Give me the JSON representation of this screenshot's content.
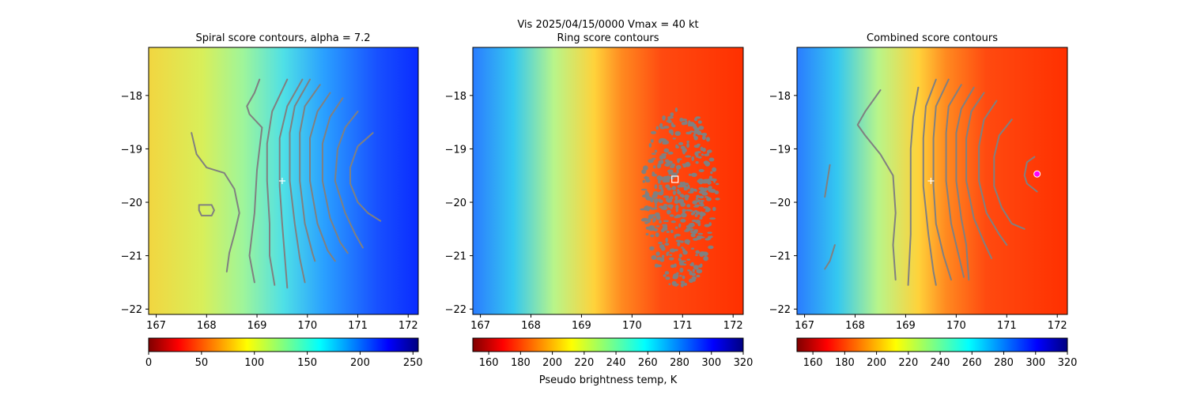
{
  "figure": {
    "suptitle": "Vis  2025/04/15/0000    Vmax = 40 kt",
    "colorbar_label": "Pseudo brightness temp, K"
  },
  "chart_data": [
    {
      "type": "heatmap",
      "title": "Spiral score contours, alpha =  7.2",
      "xlim": [
        166.85,
        172.2
      ],
      "ylim": [
        -22.1,
        -17.1
      ],
      "x_ticks": [
        167,
        168,
        169,
        170,
        171,
        172
      ],
      "y_ticks": [
        -18,
        -19,
        -20,
        -21,
        -22
      ],
      "x_tick_labels": [
        "167",
        "168",
        "169",
        "170",
        "171",
        "172"
      ],
      "y_tick_labels": [
        "−18",
        "−19",
        "−20",
        "−21",
        "−22"
      ],
      "colormap": "jet_r",
      "background": {
        "cold_low_x": 166.85,
        "warm_high_x": 172.2,
        "value_west": 90,
        "value_east": 230
      },
      "colorbar": {
        "range": [
          0,
          255
        ],
        "ticks": [
          0,
          50,
          100,
          150,
          200,
          250
        ],
        "tick_labels": [
          "0",
          "50",
          "100",
          "150",
          "200",
          "250"
        ]
      },
      "center_marker": {
        "x": 169.5,
        "y": -19.6,
        "symbol": "plus"
      },
      "contours": [
        {
          "name": "inner-spiral",
          "points": [
            [
              167.7,
              -18.7
            ],
            [
              167.8,
              -19.1
            ],
            [
              168.0,
              -19.35
            ],
            [
              168.35,
              -19.45
            ],
            [
              168.55,
              -19.75
            ],
            [
              168.65,
              -20.2
            ],
            [
              168.55,
              -20.6
            ],
            [
              168.45,
              -20.95
            ],
            [
              168.4,
              -21.3
            ]
          ]
        },
        {
          "name": "closed-loop",
          "closed": true,
          "points": [
            [
              167.85,
              -20.05
            ],
            [
              168.1,
              -20.05
            ],
            [
              168.15,
              -20.15
            ],
            [
              168.1,
              -20.25
            ],
            [
              167.9,
              -20.25
            ],
            [
              167.85,
              -20.15
            ]
          ]
        },
        {
          "name": "spiral-arc-1",
          "points": [
            [
              169.05,
              -17.7
            ],
            [
              168.95,
              -17.95
            ],
            [
              168.8,
              -18.2
            ],
            [
              168.85,
              -18.35
            ],
            [
              169.1,
              -18.6
            ],
            [
              169.0,
              -19.4
            ],
            [
              168.95,
              -20.2
            ],
            [
              168.85,
              -21.0
            ],
            [
              168.95,
              -21.5
            ]
          ]
        },
        {
          "name": "spiral-arc-2",
          "points": [
            [
              169.6,
              -17.7
            ],
            [
              169.3,
              -18.3
            ],
            [
              169.2,
              -18.9
            ],
            [
              169.2,
              -19.6
            ],
            [
              169.25,
              -20.4
            ],
            [
              169.25,
              -21.0
            ],
            [
              169.35,
              -21.55
            ]
          ]
        },
        {
          "name": "spiral-arc-3",
          "points": [
            [
              169.9,
              -17.7
            ],
            [
              169.6,
              -18.2
            ],
            [
              169.45,
              -18.8
            ],
            [
              169.45,
              -19.7
            ],
            [
              169.5,
              -20.4
            ],
            [
              169.55,
              -21.0
            ],
            [
              169.6,
              -21.6
            ]
          ]
        },
        {
          "name": "spiral-arc-4",
          "points": [
            [
              170.05,
              -17.7
            ],
            [
              169.75,
              -18.2
            ],
            [
              169.65,
              -18.7
            ],
            [
              169.65,
              -19.6
            ],
            [
              169.75,
              -20.4
            ],
            [
              169.85,
              -21.05
            ],
            [
              169.95,
              -21.5
            ]
          ]
        },
        {
          "name": "spiral-arc-5",
          "points": [
            [
              170.25,
              -17.8
            ],
            [
              169.95,
              -18.2
            ],
            [
              169.85,
              -18.7
            ],
            [
              169.85,
              -19.6
            ],
            [
              169.95,
              -20.4
            ],
            [
              170.1,
              -20.95
            ],
            [
              170.15,
              -21.1
            ]
          ]
        },
        {
          "name": "spiral-arc-6",
          "points": [
            [
              170.45,
              -17.95
            ],
            [
              170.2,
              -18.3
            ],
            [
              170.05,
              -18.8
            ],
            [
              170.05,
              -19.6
            ],
            [
              170.2,
              -20.4
            ],
            [
              170.4,
              -20.9
            ],
            [
              170.55,
              -21.1
            ]
          ]
        },
        {
          "name": "spiral-arc-7",
          "points": [
            [
              170.7,
              -18.05
            ],
            [
              170.45,
              -18.4
            ],
            [
              170.3,
              -18.9
            ],
            [
              170.3,
              -19.6
            ],
            [
              170.45,
              -20.3
            ],
            [
              170.65,
              -20.75
            ],
            [
              170.8,
              -20.95
            ]
          ]
        },
        {
          "name": "spiral-arc-8",
          "points": [
            [
              171.0,
              -18.3
            ],
            [
              170.75,
              -18.6
            ],
            [
              170.6,
              -19.0
            ],
            [
              170.55,
              -19.6
            ],
            [
              170.75,
              -20.2
            ],
            [
              170.95,
              -20.6
            ],
            [
              171.1,
              -20.85
            ]
          ]
        },
        {
          "name": "spiral-arc-9",
          "points": [
            [
              171.3,
              -18.7
            ],
            [
              171.0,
              -18.95
            ],
            [
              170.85,
              -19.35
            ],
            [
              170.85,
              -19.65
            ],
            [
              171.0,
              -20.0
            ],
            [
              171.2,
              -20.2
            ],
            [
              171.45,
              -20.35
            ]
          ]
        }
      ]
    },
    {
      "type": "heatmap",
      "title": "Ring score contours",
      "xlim": [
        166.85,
        172.2
      ],
      "ylim": [
        -22.1,
        -17.1
      ],
      "x_ticks": [
        167,
        168,
        169,
        170,
        171,
        172
      ],
      "y_ticks": [
        -18,
        -19,
        -20,
        -21,
        -22
      ],
      "x_tick_labels": [
        "167",
        "168",
        "169",
        "170",
        "171",
        "172"
      ],
      "y_tick_labels": [
        "−18",
        "−19",
        "−20",
        "−21",
        "−22"
      ],
      "colormap": "jet_r",
      "background": {
        "cold_low_x": 166.85,
        "warm_high_x": 172.2,
        "value_west": 285,
        "value_east": 170
      },
      "colorbar": {
        "range": [
          150,
          320
        ],
        "ticks": [
          160,
          180,
          200,
          220,
          240,
          260,
          280,
          300,
          320
        ],
        "tick_labels": [
          "160",
          "180",
          "200",
          "220",
          "240",
          "260",
          "280",
          "300",
          "320"
        ]
      },
      "center_marker": {
        "x": 170.85,
        "y": -19.57,
        "symbol": "square"
      },
      "ring_region": {
        "center": [
          170.95,
          -19.9
        ],
        "x_radius": 0.75,
        "y_radius": 1.7,
        "fill": "#808080"
      }
    },
    {
      "type": "heatmap",
      "title": "Combined score contours",
      "xlim": [
        166.85,
        172.2
      ],
      "ylim": [
        -22.1,
        -17.1
      ],
      "x_ticks": [
        167,
        168,
        169,
        170,
        171,
        172
      ],
      "y_ticks": [
        -18,
        -19,
        -20,
        -21,
        -22
      ],
      "x_tick_labels": [
        "167",
        "168",
        "169",
        "170",
        "171",
        "172"
      ],
      "y_tick_labels": [
        "−18",
        "−19",
        "−20",
        "−21",
        "−22"
      ],
      "colormap": "jet_r",
      "background": {
        "cold_low_x": 166.85,
        "warm_high_x": 172.2,
        "value_west": 285,
        "value_east": 170
      },
      "colorbar": {
        "range": [
          150,
          320
        ],
        "ticks": [
          160,
          180,
          200,
          220,
          240,
          260,
          280,
          300,
          320
        ],
        "tick_labels": [
          "160",
          "180",
          "200",
          "220",
          "240",
          "260",
          "280",
          "300",
          "320"
        ]
      },
      "center_marker": {
        "x": 169.5,
        "y": -19.6,
        "symbol": "plus"
      },
      "best_marker": {
        "x": 171.6,
        "y": -19.47,
        "symbol": "circle",
        "color": "#ff00ff"
      },
      "contours": [
        {
          "name": "west-fragment-1",
          "points": [
            [
              167.5,
              -19.3
            ],
            [
              167.45,
              -19.6
            ],
            [
              167.4,
              -19.9
            ]
          ]
        },
        {
          "name": "west-fragment-2",
          "points": [
            [
              167.6,
              -20.8
            ],
            [
              167.5,
              -21.1
            ],
            [
              167.4,
              -21.25
            ]
          ]
        },
        {
          "name": "spiral-arc-1",
          "points": [
            [
              168.5,
              -17.9
            ],
            [
              168.2,
              -18.3
            ],
            [
              168.05,
              -18.55
            ],
            [
              168.2,
              -18.75
            ],
            [
              168.5,
              -19.1
            ],
            [
              168.75,
              -19.5
            ],
            [
              168.8,
              -20.2
            ],
            [
              168.75,
              -20.8
            ],
            [
              168.8,
              -21.45
            ]
          ]
        },
        {
          "name": "spiral-arc-2",
          "points": [
            [
              169.25,
              -17.85
            ],
            [
              169.15,
              -18.4
            ],
            [
              169.1,
              -19.0
            ],
            [
              169.1,
              -19.8
            ],
            [
              169.1,
              -20.6
            ],
            [
              169.05,
              -21.55
            ]
          ]
        },
        {
          "name": "spiral-arc-3",
          "points": [
            [
              169.6,
              -17.7
            ],
            [
              169.4,
              -18.2
            ],
            [
              169.35,
              -18.8
            ],
            [
              169.35,
              -19.7
            ],
            [
              169.45,
              -20.6
            ],
            [
              169.55,
              -21.3
            ],
            [
              169.6,
              -21.55
            ]
          ]
        },
        {
          "name": "spiral-arc-4",
          "points": [
            [
              169.85,
              -17.7
            ],
            [
              169.6,
              -18.2
            ],
            [
              169.55,
              -18.8
            ],
            [
              169.55,
              -19.7
            ],
            [
              169.6,
              -20.4
            ],
            [
              169.75,
              -21.0
            ],
            [
              169.9,
              -21.45
            ]
          ]
        },
        {
          "name": "spiral-arc-5",
          "points": [
            [
              170.1,
              -17.8
            ],
            [
              169.85,
              -18.2
            ],
            [
              169.8,
              -18.7
            ],
            [
              169.8,
              -19.6
            ],
            [
              169.9,
              -20.4
            ],
            [
              170.05,
              -21.0
            ],
            [
              170.15,
              -21.4
            ]
          ]
        },
        {
          "name": "spiral-arc-6",
          "points": [
            [
              170.35,
              -17.85
            ],
            [
              170.1,
              -18.25
            ],
            [
              170.0,
              -18.7
            ],
            [
              170.0,
              -19.6
            ],
            [
              170.1,
              -20.3
            ],
            [
              170.2,
              -20.8
            ],
            [
              170.25,
              -21.45
            ]
          ]
        },
        {
          "name": "spiral-arc-7",
          "points": [
            [
              170.55,
              -17.95
            ],
            [
              170.3,
              -18.3
            ],
            [
              170.2,
              -18.8
            ],
            [
              170.2,
              -19.6
            ],
            [
              170.35,
              -20.3
            ],
            [
              170.55,
              -20.75
            ],
            [
              170.7,
              -21.05
            ]
          ]
        },
        {
          "name": "spiral-arc-8",
          "points": [
            [
              170.8,
              -18.1
            ],
            [
              170.55,
              -18.45
            ],
            [
              170.45,
              -18.95
            ],
            [
              170.45,
              -19.6
            ],
            [
              170.6,
              -20.2
            ],
            [
              170.85,
              -20.6
            ],
            [
              171.0,
              -20.8
            ]
          ]
        },
        {
          "name": "spiral-arc-9",
          "points": [
            [
              171.1,
              -18.45
            ],
            [
              170.85,
              -18.75
            ],
            [
              170.75,
              -19.15
            ],
            [
              170.75,
              -19.7
            ],
            [
              170.9,
              -20.1
            ],
            [
              171.1,
              -20.4
            ],
            [
              171.35,
              -20.5
            ]
          ]
        },
        {
          "name": "spiral-arc-10",
          "points": [
            [
              171.55,
              -19.15
            ],
            [
              171.4,
              -19.25
            ],
            [
              171.35,
              -19.5
            ],
            [
              171.4,
              -19.65
            ],
            [
              171.6,
              -19.8
            ]
          ]
        }
      ]
    }
  ]
}
